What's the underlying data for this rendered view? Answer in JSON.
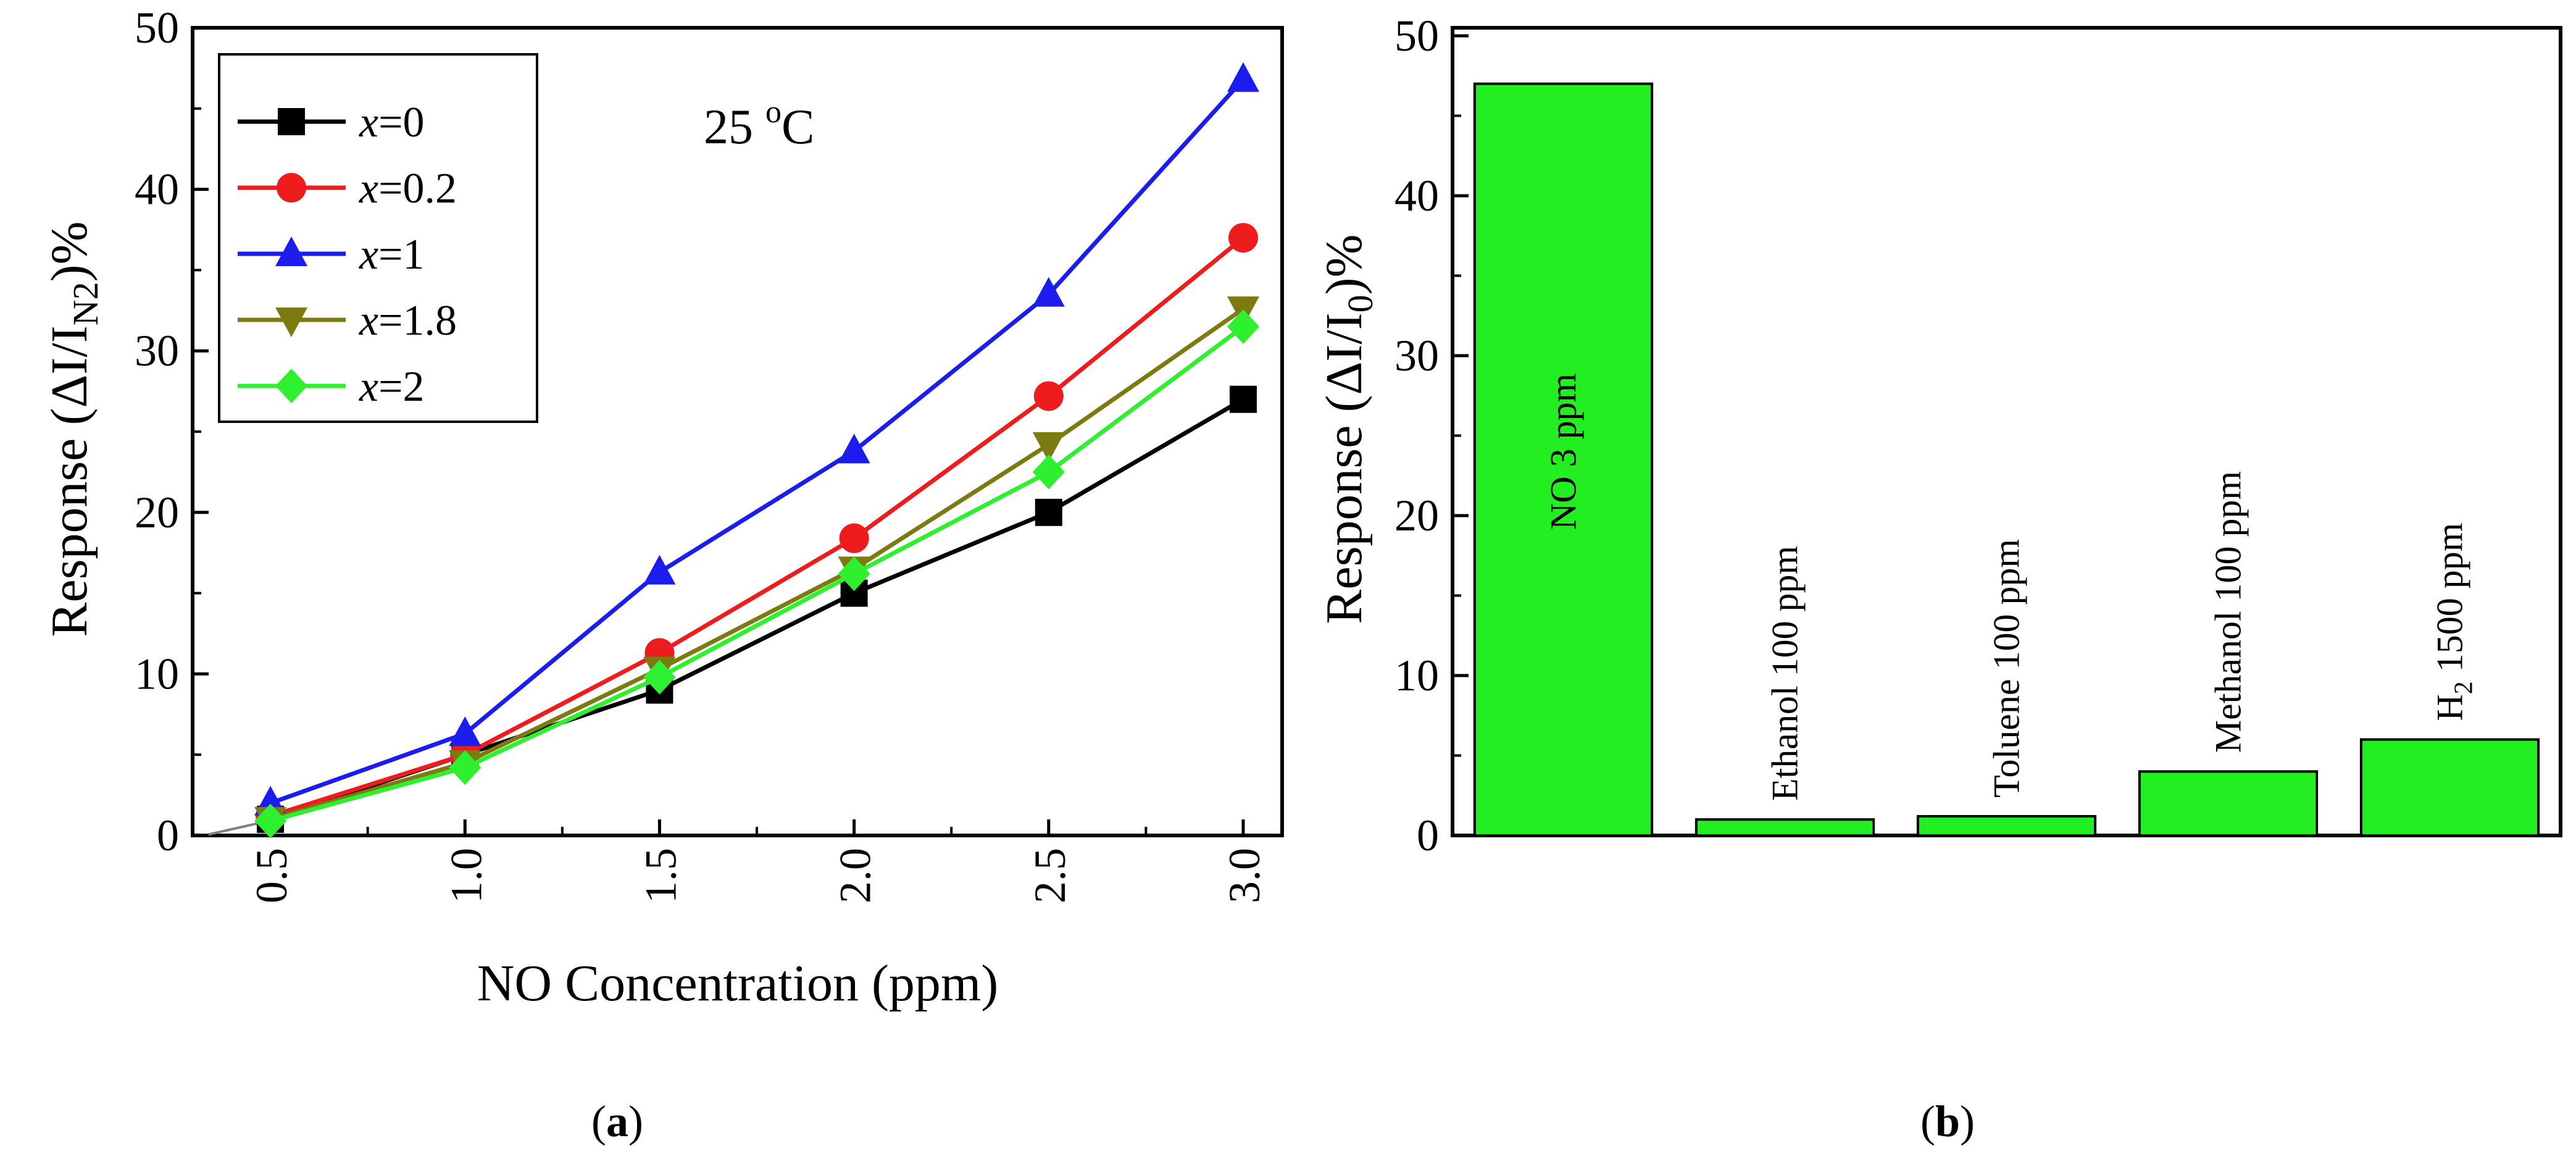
{
  "chart_data": [
    {
      "id": "a",
      "type": "line",
      "panel_label_open": "(",
      "panel_label_letter": "a",
      "panel_label_close": ")",
      "annotation": {
        "temp": "25 ",
        "degree": "o",
        "unit": "C"
      },
      "x": [
        0.5,
        1.0,
        1.5,
        2.0,
        2.5,
        3.0
      ],
      "xticks": [
        "0.5",
        "1.0",
        "1.5",
        "2.0",
        "2.5",
        "3.0"
      ],
      "xlim": [
        0.3,
        3.1
      ],
      "ylim": [
        0,
        50
      ],
      "yticks": [
        "0",
        "10",
        "20",
        "30",
        "40",
        "50"
      ],
      "xlabel": "NO Concentration (ppm)",
      "ylabel": {
        "prefix": "Response (ΔI/I",
        "sub": "N2",
        "suffix": ")%"
      },
      "legend_position": "top-left",
      "fit_line": {
        "x": [
          0.33,
          0.55
        ],
        "y": [
          0,
          1.2
        ],
        "color": "#7f7f7f"
      },
      "series": [
        {
          "var": "x",
          "eq": "=0",
          "color": "#000000",
          "marker": "square",
          "values": [
            1.0,
            5.0,
            9.0,
            15.0,
            20.0,
            27.0
          ]
        },
        {
          "var": "x",
          "eq": "=0.2",
          "color": "#ee1c1c",
          "marker": "circle",
          "values": [
            1.2,
            5.0,
            11.3,
            18.4,
            27.2,
            37.0
          ]
        },
        {
          "var": "x",
          "eq": "=1",
          "color": "#1c1cee",
          "marker": "triangle-up",
          "values": [
            2.0,
            6.3,
            16.3,
            23.8,
            33.5,
            46.8
          ]
        },
        {
          "var": "x",
          "eq": "=1.8",
          "color": "#7b7b12",
          "marker": "triangle-down",
          "values": [
            1.0,
            4.5,
            10.3,
            16.5,
            24.2,
            32.6
          ]
        },
        {
          "var": "x",
          "eq": "=2",
          "color": "#2ef02e",
          "marker": "diamond",
          "values": [
            0.9,
            4.2,
            9.8,
            16.2,
            22.5,
            31.5
          ]
        }
      ]
    },
    {
      "id": "b",
      "type": "bar",
      "panel_label_open": "(",
      "panel_label_letter": "b",
      "panel_label_close": ")",
      "categories": [
        {
          "text": "NO 3 ppm"
        },
        {
          "text": "Ethanol 100 ppm"
        },
        {
          "text": "Toluene 100 ppm"
        },
        {
          "text": "Methanol 100 ppm"
        },
        {
          "text": "H",
          "sub": "2",
          "rest": " 1500 ppm"
        }
      ],
      "values": [
        47,
        1,
        1.2,
        4,
        6
      ],
      "ylim": [
        0,
        50.5
      ],
      "yticks": [
        "0",
        "10",
        "20",
        "30",
        "40",
        "50"
      ],
      "ylabel": {
        "prefix": "Response (ΔI/I",
        "sub": "0",
        "suffix": ")%"
      },
      "bar_color": "#22ee22"
    }
  ]
}
